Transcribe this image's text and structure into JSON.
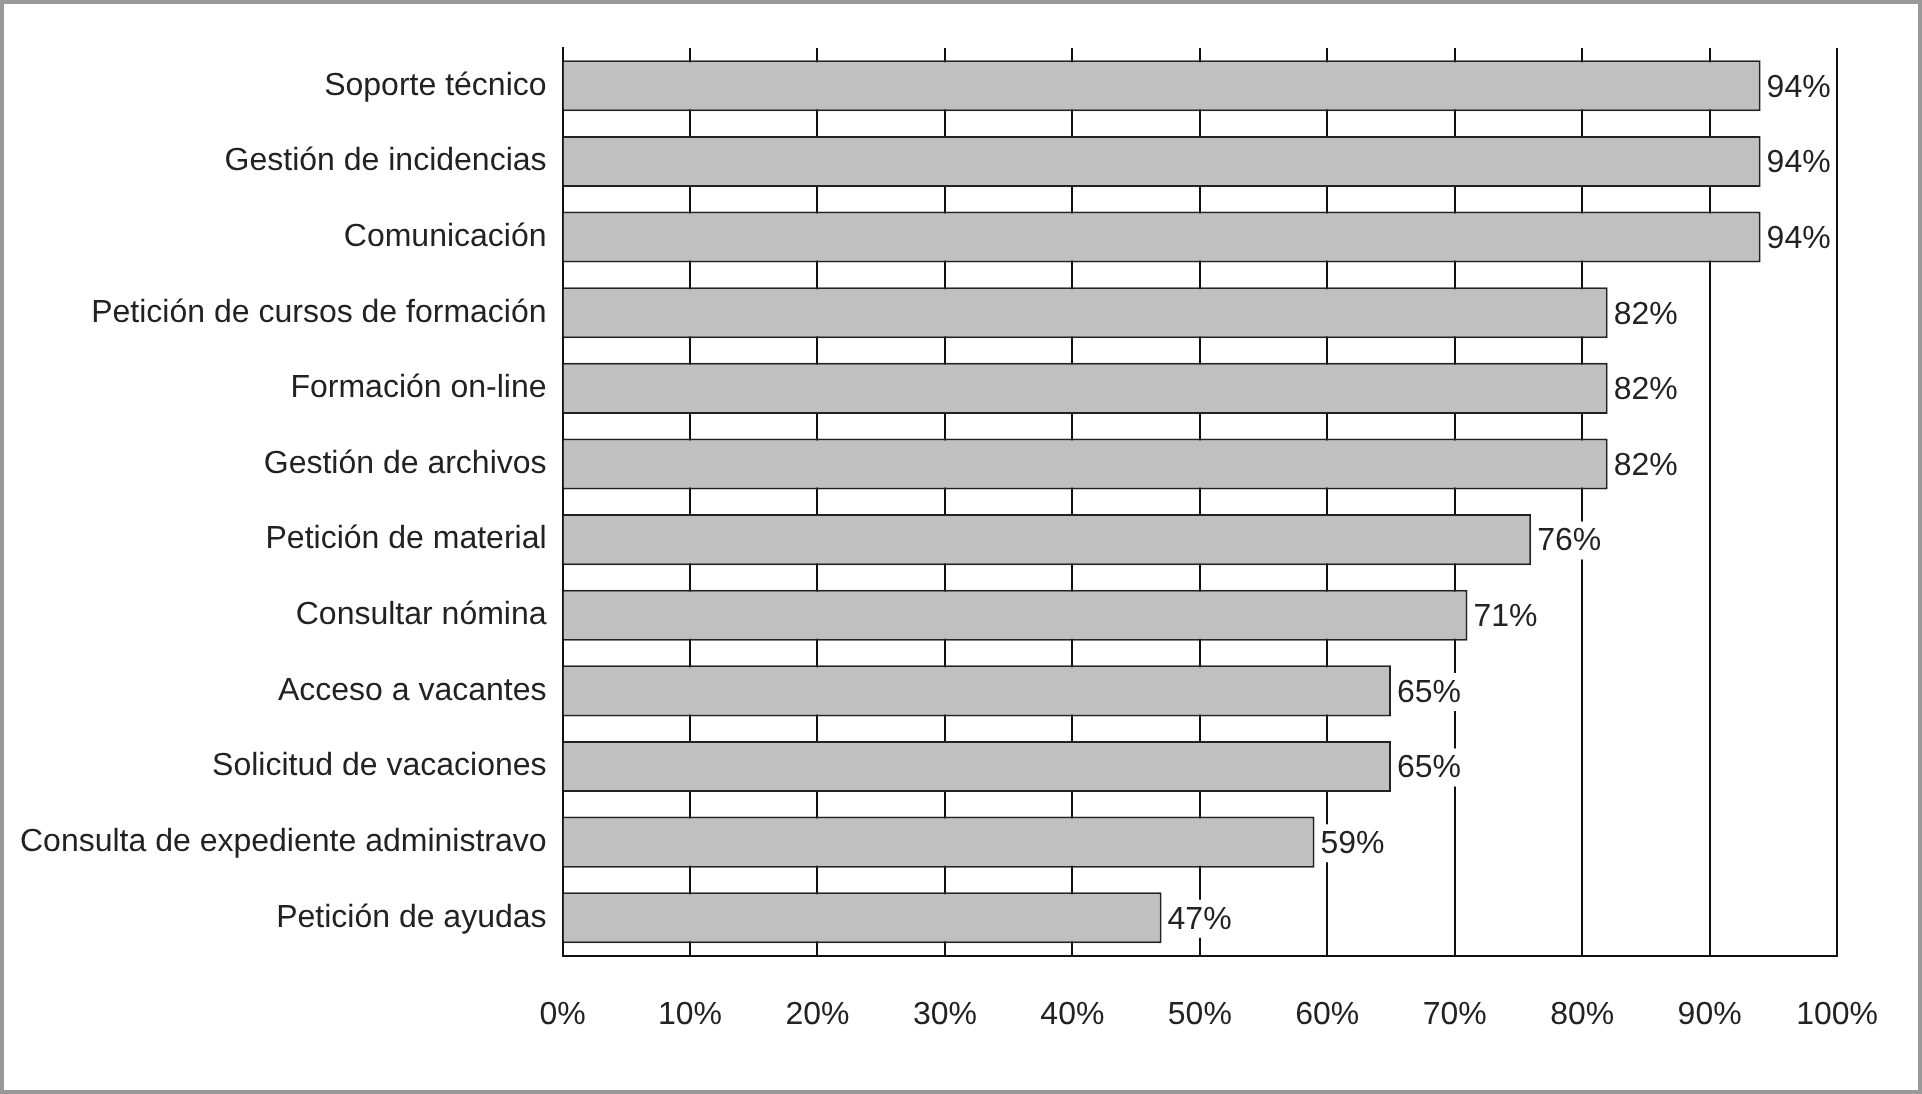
{
  "chart_data": {
    "type": "bar",
    "orientation": "horizontal",
    "categories": [
      "Soporte técnico",
      "Gestión de incidencias",
      "Comunicación",
      "Petición de cursos de formación",
      "Formación on-line",
      "Gestión de archivos",
      "Petición de material",
      "Consultar nómina",
      "Acceso a vacantes",
      "Solicitud de vacaciones",
      "Consulta de expediente administravo",
      "Petición de ayudas"
    ],
    "values": [
      94,
      94,
      94,
      82,
      82,
      82,
      76,
      71,
      65,
      65,
      59,
      47
    ],
    "color": "#c0c0c0",
    "xlim": [
      0,
      100
    ],
    "xticks": [
      {
        "value": 0,
        "label": "0%"
      },
      {
        "value": 10,
        "label": "10%"
      },
      {
        "value": 20,
        "label": "20%"
      },
      {
        "value": 30,
        "label": "30%"
      },
      {
        "value": 40,
        "label": "40%"
      },
      {
        "value": 50,
        "label": "50%"
      },
      {
        "value": 60,
        "label": "60%"
      },
      {
        "value": 70,
        "label": "70%"
      },
      {
        "value": 80,
        "label": "80%"
      },
      {
        "value": 90,
        "label": "90%"
      },
      {
        "value": 100,
        "label": "100%"
      }
    ],
    "value_labels": [
      "94%",
      "94%",
      "94%",
      "82%",
      "82%",
      "82%",
      "76%",
      "71%",
      "65%",
      "65%",
      "59%",
      "47%"
    ],
    "grid": "x",
    "legend": false
  }
}
